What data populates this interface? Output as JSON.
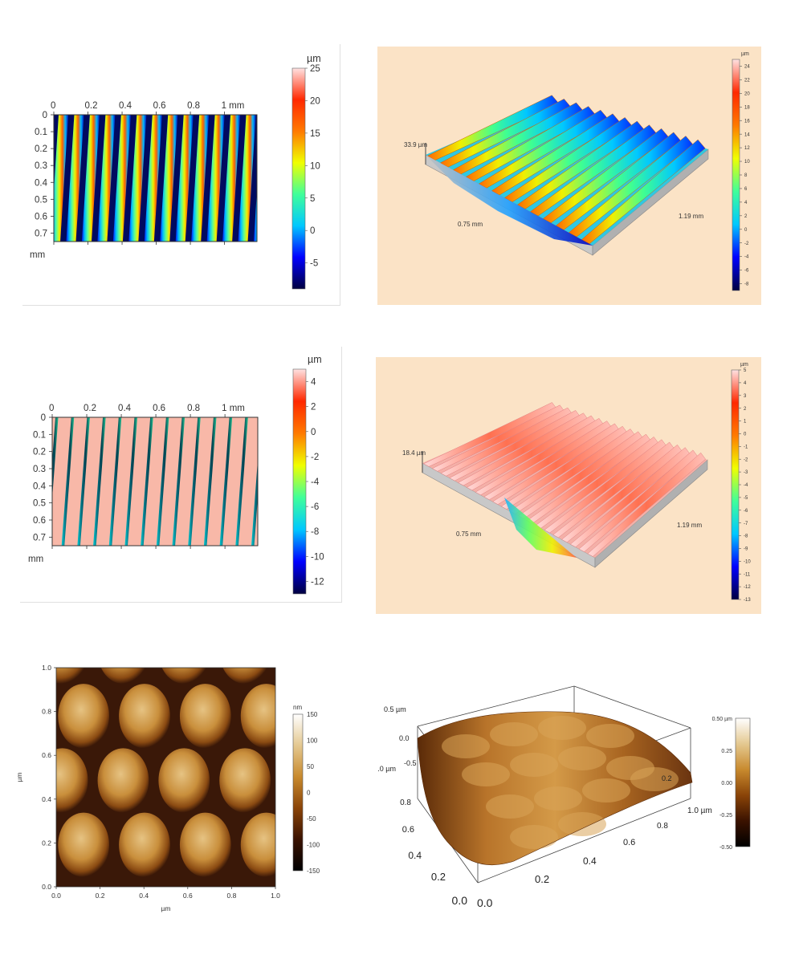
{
  "colors": {
    "jet": [
      "#000040",
      "#0000ff",
      "#00c8ff",
      "#40ff9a",
      "#f0ff00",
      "#ff7a00",
      "#ff2800",
      "#ffe2e2"
    ],
    "afm": [
      "#000000",
      "#3a1200",
      "#8a4408",
      "#c88a2e",
      "#e4c890",
      "#ffffff"
    ],
    "beige_bg": "#fbe3c6"
  },
  "chart_data": [
    {
      "id": "p1",
      "type": "heatmap",
      "title": "",
      "xunit": "mm",
      "yunit": "mm",
      "xticks": [
        "0",
        "0.2",
        "0.4",
        "0.6",
        "0.8",
        "1 mm"
      ],
      "yticks": [
        "0",
        "0.1",
        "0.2",
        "0.3",
        "0.4",
        "0.5",
        "0.6",
        "0.7"
      ],
      "xlim": [
        0,
        1.19
      ],
      "ylim": [
        0,
        0.75
      ],
      "colorbar": {
        "unit": "µm",
        "ticks": [
          "25",
          "20",
          "15",
          "10",
          "5",
          "0",
          "-5"
        ],
        "range": [
          -9,
          25
        ]
      },
      "stripes": 13
    },
    {
      "id": "p2",
      "type": "heatmap",
      "title": "",
      "view": "3d",
      "labels": {
        "height": "33.9 µm",
        "depth": "0.75 mm",
        "width": "1.19 mm"
      },
      "colorbar": {
        "unit": "µm",
        "ticks": [
          "24",
          "22",
          "20",
          "18",
          "16",
          "14",
          "12",
          "10",
          "8",
          "6",
          "4",
          "2",
          "0",
          "-2",
          "-4",
          "-6",
          "-8"
        ],
        "range": [
          -9,
          25
        ]
      },
      "stripes": 13
    },
    {
      "id": "p3",
      "type": "heatmap",
      "title": "",
      "xunit": "mm",
      "yunit": "mm",
      "xticks": [
        "0",
        "0.2",
        "0.4",
        "0.6",
        "0.8",
        "1 mm"
      ],
      "yticks": [
        "0",
        "0.1",
        "0.2",
        "0.3",
        "0.4",
        "0.5",
        "0.6",
        "0.7"
      ],
      "xlim": [
        0,
        1.19
      ],
      "ylim": [
        0,
        0.75
      ],
      "colorbar": {
        "unit": "µm",
        "ticks": [
          "4",
          "2",
          "0",
          "-2",
          "-4",
          "-6",
          "-8",
          "-10",
          "-12"
        ],
        "range": [
          -13,
          5
        ]
      },
      "stripes": 13
    },
    {
      "id": "p4",
      "type": "heatmap",
      "title": "",
      "view": "3d",
      "labels": {
        "height": "18.4 µm",
        "depth": "0.75 mm",
        "width": "1.19 mm"
      },
      "colorbar": {
        "unit": "µm",
        "ticks": [
          "5",
          "4",
          "3",
          "2",
          "1",
          "0",
          "-1",
          "-2",
          "-3",
          "-4",
          "-5",
          "-6",
          "-7",
          "-8",
          "-9",
          "-10",
          "-11",
          "-12",
          "-13"
        ],
        "range": [
          -13,
          5
        ]
      },
      "stripes": 20
    },
    {
      "id": "p5",
      "type": "heatmap",
      "title": "",
      "xlabel": "µm",
      "ylabel": "µm",
      "xticks": [
        "0.0",
        "0.2",
        "0.4",
        "0.6",
        "0.8",
        "1.0"
      ],
      "yticks": [
        "0.0",
        "0.2",
        "0.4",
        "0.6",
        "0.8",
        "1.0"
      ],
      "xlim": [
        0,
        1
      ],
      "ylim": [
        0,
        1
      ],
      "colorbar": {
        "unit": "nm",
        "ticks": [
          "150",
          "100",
          "50",
          "0",
          "-50",
          "-100",
          "-150"
        ],
        "range": [
          -150,
          150
        ]
      },
      "grid": {
        "cols": 4,
        "rows": 4
      }
    },
    {
      "id": "p6",
      "type": "heatmap",
      "title": "",
      "view": "3d",
      "zticks": [
        "0.5 µm",
        "0.0",
        "-0.5"
      ],
      "xticks": [
        "0.0",
        "0.2",
        "0.4",
        "0.6",
        "0.8",
        "1.0 µm"
      ],
      "yticks": [
        "0.0",
        "0.2",
        "0.4",
        "0.6",
        "0.8",
        "1.0 µm"
      ],
      "back_label": "0.2",
      "colorbar": {
        "unit": "",
        "ticks": [
          "0.50 µm",
          "0.25",
          "0.00",
          "-0.25",
          "-0.50"
        ],
        "range": [
          -0.5,
          0.5
        ]
      }
    }
  ]
}
